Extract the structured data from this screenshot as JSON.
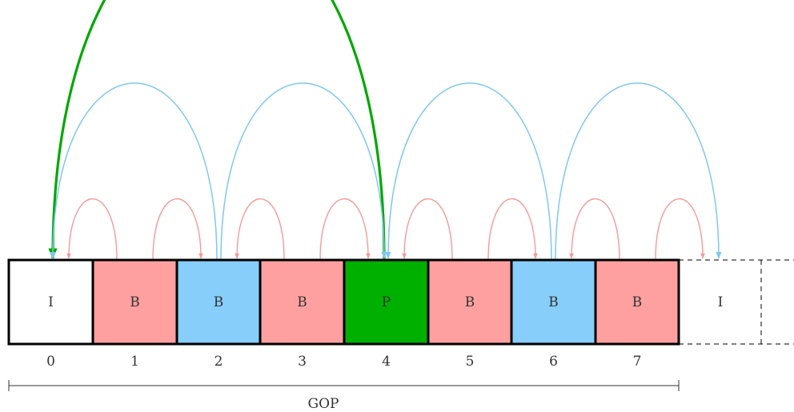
{
  "frames": [
    {
      "type": "I",
      "index": "0",
      "color": "#ffffff"
    },
    {
      "type": "B",
      "index": "1",
      "color": "#ffa0a0"
    },
    {
      "type": "B",
      "index": "2",
      "color": "#87cefa"
    },
    {
      "type": "B",
      "index": "3",
      "color": "#ffa0a0"
    },
    {
      "type": "P",
      "index": "4",
      "color": "#00b000"
    },
    {
      "type": "B",
      "index": "5",
      "color": "#ffa0a0"
    },
    {
      "type": "B",
      "index": "6",
      "color": "#87cefa"
    },
    {
      "type": "B",
      "index": "7",
      "color": "#ffa0a0"
    }
  ],
  "next_frame": {
    "type": "I"
  },
  "gop_label": "GOP",
  "colors": {
    "i_frame": "#ffffff",
    "b_light": "#ffa0a0",
    "b_blue": "#87cefa",
    "p_frame": "#00b000",
    "arrow_red": "#f59a9a",
    "arrow_blue": "#7ec8f2",
    "arrow_green": "#00a800"
  },
  "references": [
    {
      "from": 4,
      "to": 0,
      "kind": "green"
    },
    {
      "from": 2,
      "to": 0,
      "kind": "blue"
    },
    {
      "from": 2,
      "to": 4,
      "kind": "blue"
    },
    {
      "from": 6,
      "to": 4,
      "kind": "blue"
    },
    {
      "from": 6,
      "to": 8,
      "kind": "blue"
    },
    {
      "from": 1,
      "to": 0,
      "kind": "red"
    },
    {
      "from": 1,
      "to": 2,
      "kind": "red"
    },
    {
      "from": 3,
      "to": 2,
      "kind": "red"
    },
    {
      "from": 3,
      "to": 4,
      "kind": "red"
    },
    {
      "from": 5,
      "to": 4,
      "kind": "red"
    },
    {
      "from": 5,
      "to": 6,
      "kind": "red"
    },
    {
      "from": 7,
      "to": 6,
      "kind": "red"
    },
    {
      "from": 7,
      "to": 8,
      "kind": "red"
    }
  ]
}
